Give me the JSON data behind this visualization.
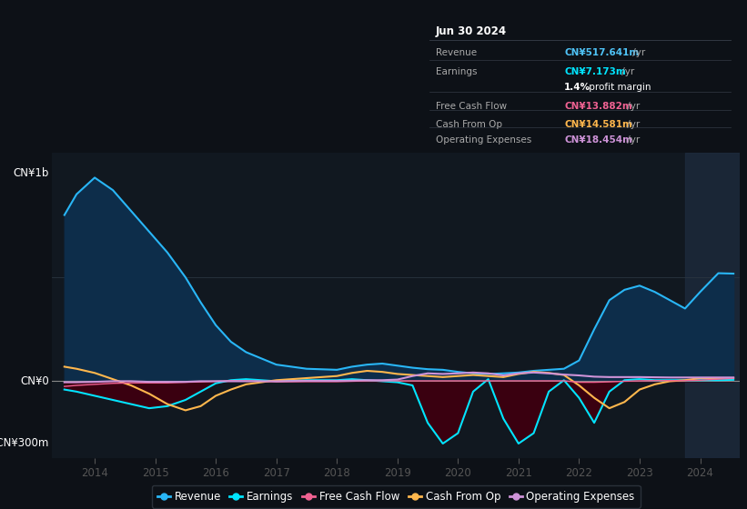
{
  "bg_color": "#0d1117",
  "plot_bg_color": "#111820",
  "title_box": {
    "date": "Jun 30 2024",
    "rows": [
      {
        "label": "Revenue",
        "value": "CN¥517.641m /yr",
        "color": "#4fc3f7"
      },
      {
        "label": "Earnings",
        "value": "CN¥7.173m /yr",
        "color": "#00e5ff"
      },
      {
        "label": "",
        "value": "1.4% profit margin",
        "color": "#cccccc"
      },
      {
        "label": "Free Cash Flow",
        "value": "CN¥13.882m /yr",
        "color": "#f06292"
      },
      {
        "label": "Cash From Op",
        "value": "CN¥14.581m /yr",
        "color": "#ffb74d"
      },
      {
        "label": "Operating Expenses",
        "value": "CN¥18.454m /yr",
        "color": "#ce93d8"
      }
    ]
  },
  "ylabel_top": "CN¥1b",
  "ylabel_zero": "CN¥0",
  "ylabel_bottom": "-CN¥300m",
  "ylim": [
    -370,
    1100
  ],
  "xlim_start": 2013.3,
  "xlim_end": 2024.65,
  "xticks": [
    2014,
    2015,
    2016,
    2017,
    2018,
    2019,
    2020,
    2021,
    2022,
    2023,
    2024
  ],
  "shade_right_x": 2023.75,
  "revenue_x": [
    2013.5,
    2013.7,
    2014.0,
    2014.3,
    2014.6,
    2014.9,
    2015.2,
    2015.5,
    2015.75,
    2016.0,
    2016.25,
    2016.5,
    2016.75,
    2017.0,
    2017.5,
    2018.0,
    2018.25,
    2018.5,
    2018.75,
    2019.0,
    2019.25,
    2019.5,
    2019.75,
    2020.0,
    2020.25,
    2020.5,
    2020.75,
    2021.0,
    2021.25,
    2021.5,
    2021.75,
    2022.0,
    2022.25,
    2022.5,
    2022.75,
    2023.0,
    2023.25,
    2023.5,
    2023.75,
    2024.0,
    2024.3,
    2024.55
  ],
  "revenue_y": [
    800,
    900,
    980,
    920,
    820,
    720,
    620,
    500,
    380,
    270,
    190,
    140,
    110,
    80,
    60,
    55,
    70,
    80,
    85,
    75,
    65,
    58,
    55,
    45,
    38,
    35,
    38,
    42,
    50,
    55,
    60,
    100,
    250,
    390,
    440,
    460,
    430,
    390,
    350,
    430,
    520,
    518
  ],
  "earnings_x": [
    2013.5,
    2013.7,
    2014.0,
    2014.3,
    2014.6,
    2014.9,
    2015.2,
    2015.5,
    2015.75,
    2016.0,
    2016.25,
    2016.5,
    2016.75,
    2017.0,
    2017.5,
    2018.0,
    2018.25,
    2018.5,
    2018.75,
    2019.0,
    2019.25,
    2019.5,
    2019.75,
    2020.0,
    2020.25,
    2020.5,
    2020.75,
    2021.0,
    2021.25,
    2021.5,
    2021.75,
    2022.0,
    2022.25,
    2022.5,
    2022.75,
    2023.0,
    2023.25,
    2023.5,
    2023.75,
    2024.0,
    2024.3,
    2024.55
  ],
  "earnings_y": [
    -40,
    -50,
    -70,
    -90,
    -110,
    -130,
    -120,
    -90,
    -50,
    -10,
    5,
    10,
    5,
    0,
    5,
    5,
    10,
    5,
    0,
    -5,
    -20,
    -200,
    -300,
    -250,
    -50,
    10,
    -180,
    -300,
    -250,
    -50,
    5,
    -80,
    -200,
    -50,
    5,
    10,
    5,
    5,
    5,
    5,
    5,
    7
  ],
  "cashfromop_x": [
    2013.5,
    2013.7,
    2014.0,
    2014.3,
    2014.6,
    2014.9,
    2015.2,
    2015.5,
    2015.75,
    2016.0,
    2016.25,
    2016.5,
    2016.75,
    2017.0,
    2017.5,
    2018.0,
    2018.25,
    2018.5,
    2018.75,
    2019.0,
    2019.25,
    2019.5,
    2019.75,
    2020.0,
    2020.25,
    2020.5,
    2020.75,
    2021.0,
    2021.25,
    2021.5,
    2021.75,
    2022.0,
    2022.25,
    2022.5,
    2022.75,
    2023.0,
    2023.25,
    2023.5,
    2023.75,
    2024.0,
    2024.3,
    2024.55
  ],
  "cashfromop_y": [
    70,
    60,
    40,
    10,
    -20,
    -60,
    -110,
    -140,
    -120,
    -70,
    -40,
    -15,
    -5,
    5,
    15,
    25,
    40,
    50,
    45,
    35,
    30,
    25,
    20,
    25,
    30,
    25,
    20,
    35,
    45,
    40,
    30,
    -20,
    -80,
    -130,
    -100,
    -40,
    -15,
    0,
    5,
    15,
    15,
    15
  ],
  "fcf_x": [
    2013.5,
    2013.7,
    2014.0,
    2014.3,
    2014.6,
    2014.9,
    2015.2,
    2015.5,
    2015.75,
    2016.0,
    2016.25,
    2016.5,
    2016.75,
    2017.0,
    2017.5,
    2018.0,
    2018.25,
    2018.5,
    2018.75,
    2019.0,
    2019.25,
    2019.5,
    2019.75,
    2020.0,
    2020.25,
    2020.5,
    2020.75,
    2021.0,
    2021.25,
    2021.5,
    2021.75,
    2022.0,
    2022.25,
    2022.5,
    2022.75,
    2023.0,
    2023.25,
    2023.5,
    2023.75,
    2024.0,
    2024.3,
    2024.55
  ],
  "fcf_y": [
    -25,
    -20,
    -15,
    -10,
    -8,
    -8,
    -8,
    -5,
    -3,
    0,
    3,
    2,
    0,
    -3,
    -2,
    -2,
    0,
    2,
    2,
    2,
    2,
    2,
    2,
    2,
    2,
    2,
    2,
    2,
    2,
    2,
    2,
    -5,
    -5,
    -3,
    0,
    2,
    3,
    3,
    3,
    5,
    10,
    14
  ],
  "opex_x": [
    2013.5,
    2013.7,
    2014.0,
    2014.3,
    2014.6,
    2014.9,
    2015.2,
    2015.5,
    2015.75,
    2016.0,
    2016.25,
    2016.5,
    2016.75,
    2017.0,
    2017.5,
    2018.0,
    2018.25,
    2018.5,
    2018.75,
    2019.0,
    2019.25,
    2019.5,
    2019.75,
    2020.0,
    2020.25,
    2020.5,
    2020.75,
    2021.0,
    2021.25,
    2021.5,
    2021.75,
    2022.0,
    2022.25,
    2022.5,
    2022.75,
    2023.0,
    2023.25,
    2023.5,
    2023.75,
    2024.0,
    2024.3,
    2024.55
  ],
  "opex_y": [
    -5,
    -5,
    -3,
    0,
    0,
    -3,
    -3,
    -3,
    0,
    0,
    0,
    0,
    0,
    0,
    2,
    2,
    3,
    5,
    5,
    8,
    25,
    38,
    35,
    38,
    42,
    38,
    28,
    38,
    42,
    38,
    32,
    28,
    22,
    20,
    20,
    20,
    19,
    18,
    18,
    18,
    18,
    18
  ],
  "rev_color": "#29b6f6",
  "rev_fill": "#0d2d4a",
  "earn_color": "#00e5ff",
  "earn_fill": "#3a0010",
  "fcf_color": "#f06292",
  "cfop_color": "#ffb74d",
  "opex_color": "#ce93d8",
  "legend": [
    {
      "label": "Revenue",
      "color": "#29b6f6"
    },
    {
      "label": "Earnings",
      "color": "#00e5ff"
    },
    {
      "label": "Free Cash Flow",
      "color": "#f06292"
    },
    {
      "label": "Cash From Op",
      "color": "#ffb74d"
    },
    {
      "label": "Operating Expenses",
      "color": "#ce93d8"
    }
  ]
}
